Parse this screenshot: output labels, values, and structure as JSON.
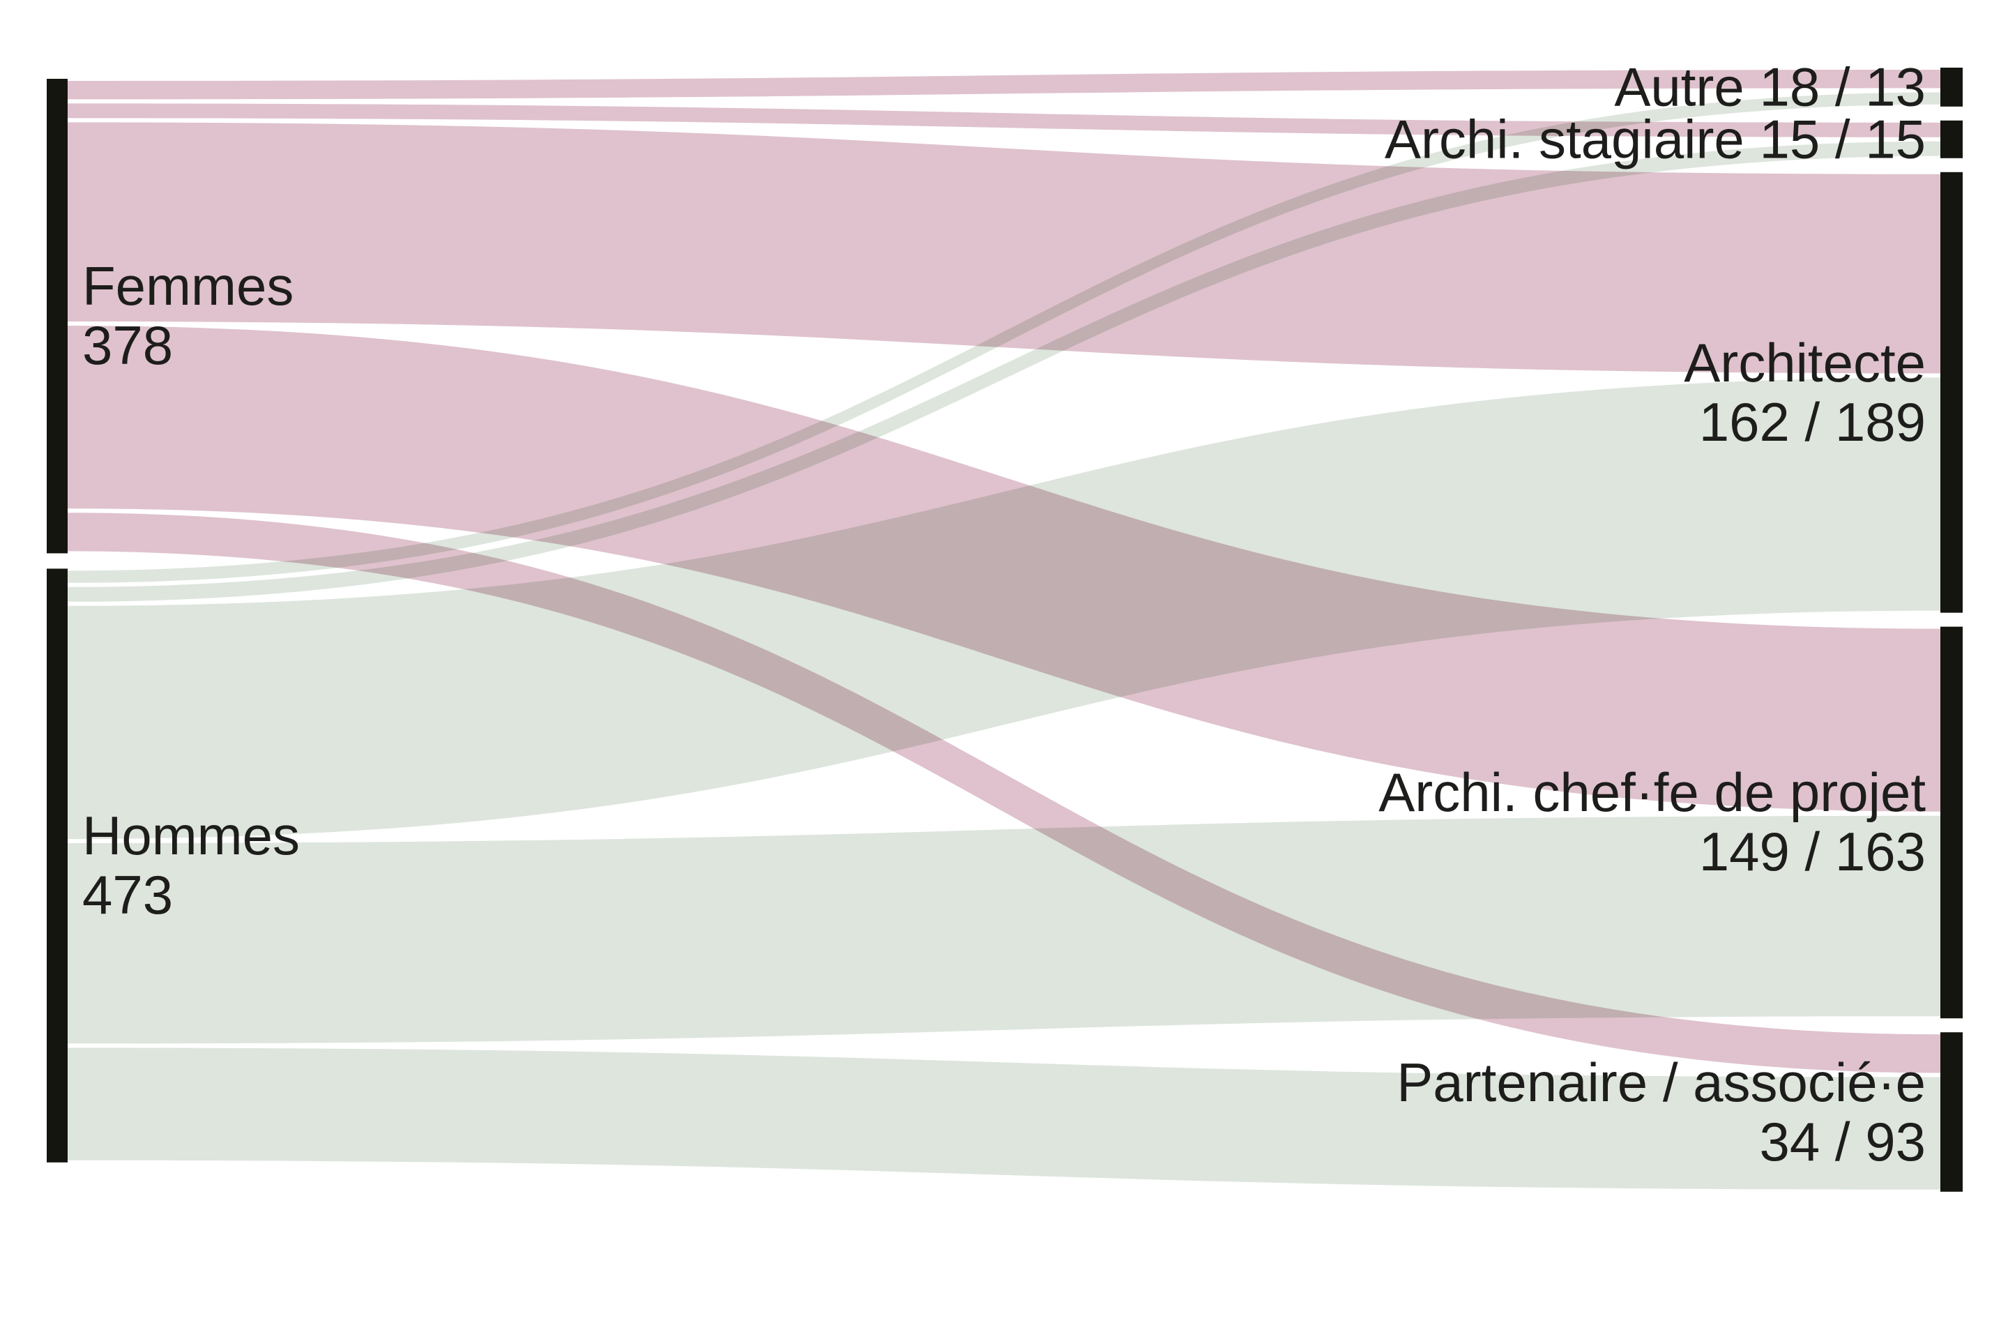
{
  "chart_data": {
    "type": "sankey",
    "description": "Flow diagram linking gender to job positions; link labels show Femmes / Hommes counts",
    "flow_colors": {
      "femmes": "#dfc2cd",
      "hommes": "#dde5dd"
    },
    "node_color": "#15150f",
    "text_color": "#1d1d1b",
    "sources": [
      {
        "id": "femmes",
        "name": "Femmes",
        "value": 378,
        "label": "Femmes\n378"
      },
      {
        "id": "hommes",
        "name": "Hommes",
        "value": 473,
        "label": "Hommes\n473"
      }
    ],
    "targets": [
      {
        "id": "autre",
        "name": "Autre",
        "femmes": 18,
        "hommes": 13,
        "label": "Autre 18 / 13"
      },
      {
        "id": "stagiaire",
        "name": "Archi. stagiaire",
        "femmes": 15,
        "hommes": 15,
        "label": "Archi. stagiaire 15 / 15"
      },
      {
        "id": "architecte",
        "name": "Architecte",
        "femmes": 162,
        "hommes": 189,
        "label": "Architecte\n162 / 189"
      },
      {
        "id": "chef",
        "name": "Archi. chef·fe de projet",
        "femmes": 149,
        "hommes": 163,
        "label": "Archi. chef·fe de projet\n149 / 163"
      },
      {
        "id": "partenaire",
        "name": "Partenaire / associé·e",
        "femmes": 34,
        "hommes": 93,
        "label": "Partenaire / associé·e\n34 / 93"
      }
    ],
    "links": [
      {
        "source": "femmes",
        "target": "autre",
        "value": 18
      },
      {
        "source": "femmes",
        "target": "stagiaire",
        "value": 15
      },
      {
        "source": "femmes",
        "target": "architecte",
        "value": 162
      },
      {
        "source": "femmes",
        "target": "chef",
        "value": 149
      },
      {
        "source": "femmes",
        "target": "partenaire",
        "value": 34
      },
      {
        "source": "hommes",
        "target": "autre",
        "value": 13
      },
      {
        "source": "hommes",
        "target": "stagiaire",
        "value": 15
      },
      {
        "source": "hommes",
        "target": "architecte",
        "value": 189
      },
      {
        "source": "hommes",
        "target": "chef",
        "value": 163
      },
      {
        "source": "hommes",
        "target": "partenaire",
        "value": 93
      }
    ]
  }
}
